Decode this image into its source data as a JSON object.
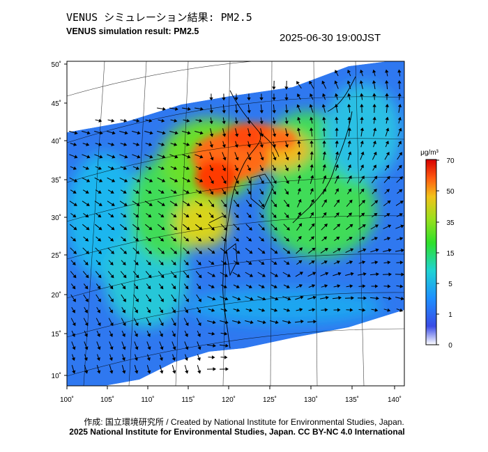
{
  "header": {
    "title_ja": "VENUS シミュレーション結果: PM2.5",
    "title_en": "VENUS simulation result: PM2.5",
    "datetime": "2025-06-30 19:00JST"
  },
  "map": {
    "lat_ticks": [
      "50˚",
      "45˚",
      "40˚",
      "35˚",
      "30˚",
      "25˚",
      "20˚",
      "15˚",
      "10˚"
    ],
    "lon_ticks": [
      "100˚",
      "105˚",
      "110˚",
      "115˚",
      "120˚",
      "125˚",
      "130˚",
      "135˚",
      "140˚"
    ]
  },
  "colorbar": {
    "unit": "μg/m³",
    "ticks": [
      "70",
      "50",
      "35",
      "15",
      "5",
      "1",
      "0"
    ],
    "colors": [
      "#ffffff",
      "#3a4ce6",
      "#1e8fff",
      "#1fd3d3",
      "#29e07a",
      "#2ee02a",
      "#9be01e",
      "#f2c21a",
      "#ff7a14",
      "#ff2a00",
      "#d60000"
    ]
  },
  "footer": {
    "credit": "作成: 国立環境研究所 / Created by National Institute for Environmental Studies, Japan.",
    "copyright": "2025 National Institute for Environmental Studies, Japan. CC BY-NC 4.0 International"
  }
}
